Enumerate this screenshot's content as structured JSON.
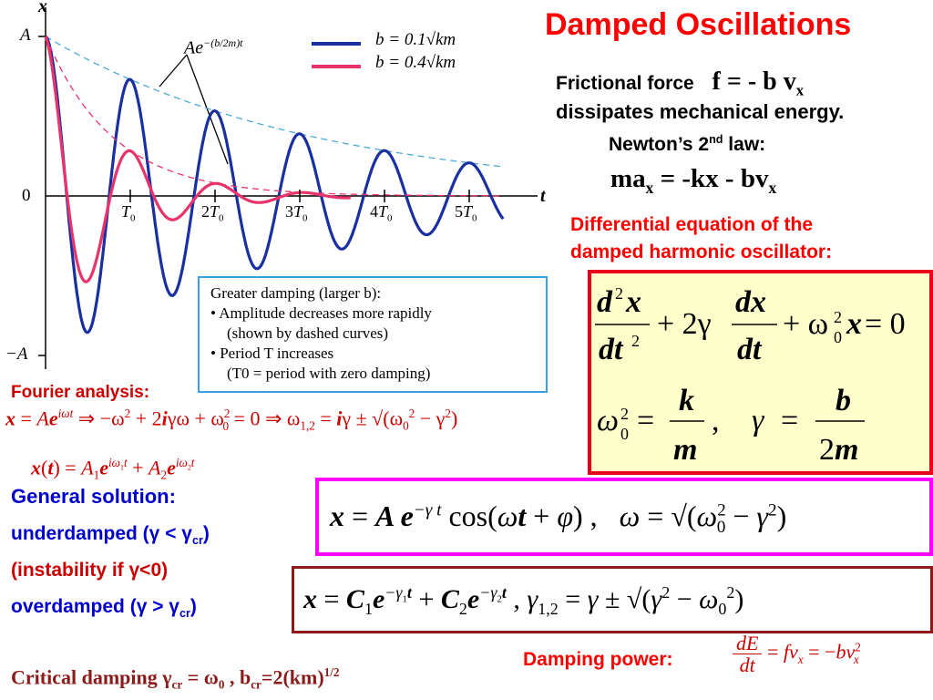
{
  "title": "Damped Oscillations",
  "colors": {
    "red": "#ff0000",
    "dark_red": "#cc0000",
    "navy": "#0000cc",
    "blue_curve": "#1a2fa0",
    "pink_curve": "#e8336b",
    "envelope": "#4aaad8",
    "box_red": "#e8001c",
    "box_magenta": "#ff00ff",
    "box_brown": "#8b1a1a",
    "note_box": "#3aa0e0",
    "eq_box_bg": "#ffffcc"
  },
  "intro": {
    "frictional_force_label": "Frictional force",
    "frictional_force_eq": "f = - b v",
    "frictional_force_sub": "x",
    "dissipates": "dissipates mechanical energy.",
    "newton_pre": "Newton’s 2",
    "newton_sup": "nd",
    "newton_post": " law:",
    "newton_eq_pre": "ma",
    "newton_eq_sub1": "x",
    "newton_eq_mid": " = -kx - bv",
    "newton_eq_sub2": "x"
  },
  "diff_eq_caption_1": "Differential equation of the",
  "diff_eq_caption_2": "damped harmonic oscillator:",
  "fourier_label": "Fourier analysis:",
  "general_solution": "General solution:",
  "underdamped": "underdamped (γ < γ",
  "underdamped_sub": "cr",
  "underdamped_end": ")",
  "instability": "(instability if γ<0)",
  "overdamped": "overdamped (γ > γ",
  "overdamped_sub": "cr",
  "overdamped_end": ")",
  "critical_pre": "Critical damping  γ",
  "critical_sub1": "cr",
  "critical_mid": " = ω",
  "critical_sub2": "0",
  "critical_mid2": " , b",
  "critical_sub3": "cr",
  "critical_end": "=2(km)",
  "critical_sup": "1/2",
  "damping_power_label": "Damping power:",
  "chart_data": {
    "type": "line",
    "x_axis_label": "t",
    "y_axis_label": "x",
    "y_ticks": [
      "A",
      "0",
      "−A"
    ],
    "x_ticks": [
      "T0",
      "2T0",
      "3T0",
      "4T0",
      "5T0"
    ],
    "envelope_label": "Ae−(b/2m)t",
    "series": [
      {
        "name": "b = 0.1√km",
        "damping_b_over_sqrt_km": 0.1
      },
      {
        "name": "b = 0.4√km",
        "damping_b_over_sqrt_km": 0.4
      }
    ],
    "y_range": [
      -1,
      1
    ],
    "x_range_periods": [
      0,
      5.4
    ]
  },
  "note_box": {
    "line1": "Greater damping (larger b):",
    "line2": "• Amplitude decreases more rapidly",
    "line3": "(shown by dashed curves)",
    "line4": "• Period T increases",
    "line5": "(T0 = period with zero damping)"
  }
}
